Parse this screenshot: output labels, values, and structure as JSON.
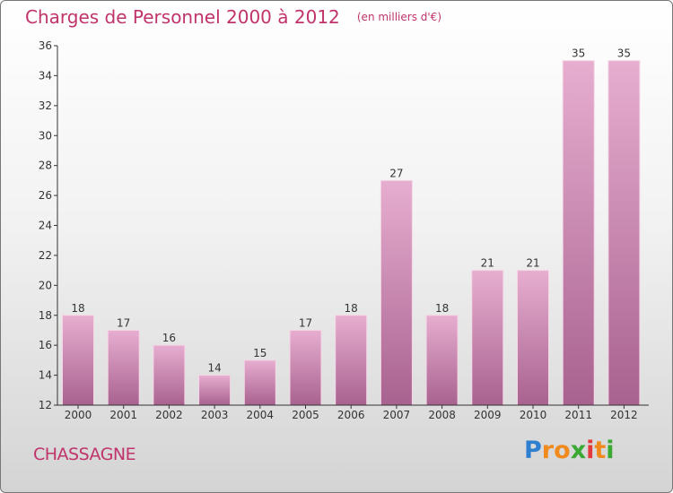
{
  "title": "Charges de Personnel 2000 à 2012",
  "subtitle": "(en milliers d'€)",
  "commune": "CHASSAGNE",
  "brand": {
    "letters": [
      "P",
      "r",
      "o",
      "x",
      "i",
      "t",
      "i"
    ],
    "colors": [
      "#2f7fd0",
      "#f08a1c",
      "#f08a1c",
      "#3aa832",
      "#e23a3a",
      "#f08a1c",
      "#3aa832"
    ]
  },
  "colors": {
    "bar_light": "#e7aed0",
    "bar_dark": "#a8628f",
    "title": "#c0336b",
    "axis": "#333333"
  },
  "chart_data": {
    "type": "bar",
    "title": "Charges de Personnel 2000 à 2012",
    "subtitle": "(en milliers d'€)",
    "categories": [
      "2000",
      "2001",
      "2002",
      "2003",
      "2004",
      "2005",
      "2006",
      "2007",
      "2008",
      "2009",
      "2010",
      "2011",
      "2012"
    ],
    "values": [
      18,
      17,
      16,
      14,
      15,
      17,
      18,
      27,
      18,
      21,
      21,
      35,
      35
    ],
    "ylim": [
      12,
      36
    ],
    "yticks": [
      12,
      14,
      16,
      18,
      20,
      22,
      24,
      26,
      28,
      30,
      32,
      34,
      36
    ],
    "grid": false,
    "data_labels": true
  }
}
